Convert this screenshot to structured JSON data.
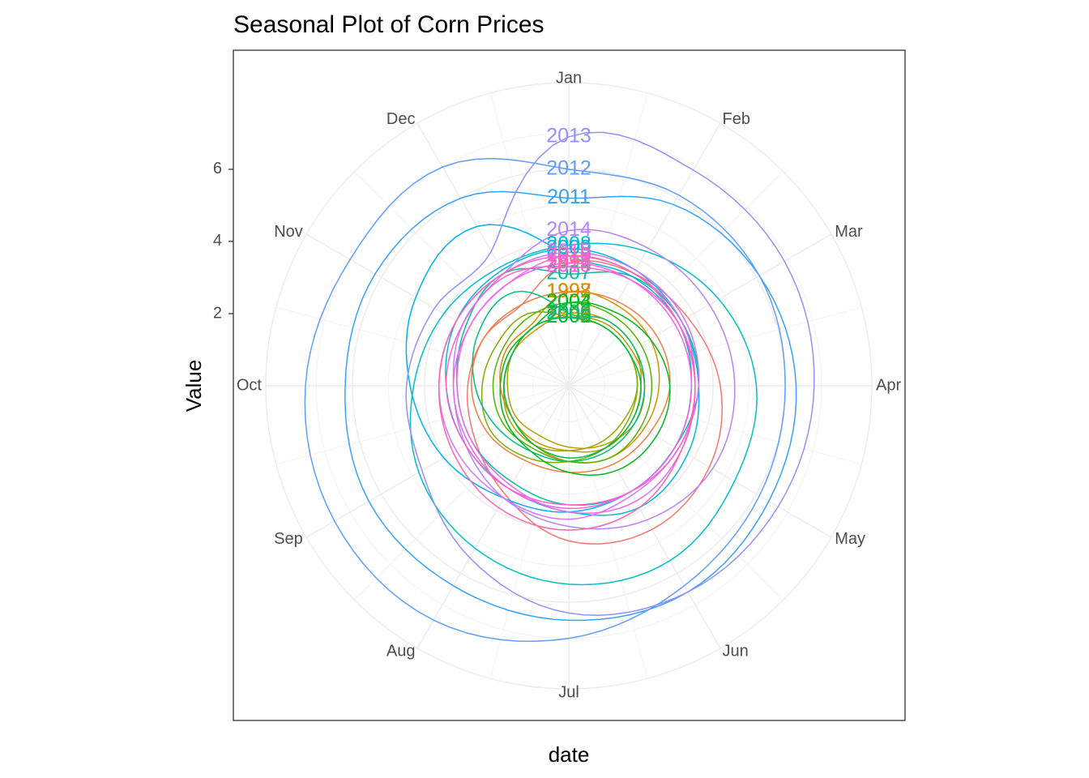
{
  "chart_data": {
    "type": "line",
    "coord": "polar",
    "title": "Seasonal Plot of Corn Prices",
    "xlabel": "date",
    "ylabel": "Value",
    "months": [
      "Jan",
      "Feb",
      "Mar",
      "Apr",
      "May",
      "Jun",
      "Jul",
      "Aug",
      "Sep",
      "Oct",
      "Nov",
      "Dec"
    ],
    "y_ticks": [
      2,
      4,
      6
    ],
    "ylim": [
      0,
      8.4
    ],
    "grid": true,
    "series": [
      {
        "name": "1996",
        "color": "#f8766d",
        "values": [
          3.4,
          3.6,
          3.8,
          4.2,
          4.5,
          4.6,
          4.3,
          3.5,
          3.0,
          2.8,
          2.7,
          2.6
        ]
      },
      {
        "name": "1997",
        "color": "#ed8141",
        "values": [
          2.6,
          2.7,
          2.8,
          2.8,
          2.6,
          2.5,
          2.4,
          2.4,
          2.6,
          2.7,
          2.7,
          2.6
        ]
      },
      {
        "name": "1998",
        "color": "#dc8d00",
        "values": [
          2.6,
          2.6,
          2.6,
          2.5,
          2.4,
          2.3,
          2.1,
          1.9,
          1.8,
          1.9,
          2.0,
          2.0
        ]
      },
      {
        "name": "1999",
        "color": "#c99800",
        "values": [
          2.0,
          2.1,
          2.1,
          2.0,
          2.0,
          2.0,
          1.8,
          1.8,
          1.8,
          1.8,
          1.8,
          1.8
        ]
      },
      {
        "name": "2000",
        "color": "#b3a000",
        "values": [
          1.9,
          2.0,
          2.0,
          2.1,
          2.1,
          1.9,
          1.7,
          1.6,
          1.7,
          1.7,
          1.8,
          1.9
        ]
      },
      {
        "name": "2001",
        "color": "#9aa800",
        "values": [
          1.9,
          1.9,
          1.9,
          1.9,
          1.8,
          1.8,
          1.8,
          1.9,
          1.9,
          1.8,
          1.8,
          1.9
        ]
      },
      {
        "name": "2002",
        "color": "#7cae00",
        "values": [
          1.9,
          1.9,
          1.9,
          1.9,
          1.9,
          2.0,
          2.1,
          2.3,
          2.5,
          2.4,
          2.3,
          2.3
        ]
      },
      {
        "name": "2003",
        "color": "#53b400",
        "values": [
          2.3,
          2.3,
          2.3,
          2.3,
          2.3,
          2.3,
          2.1,
          2.0,
          2.1,
          2.1,
          2.1,
          2.2
        ]
      },
      {
        "name": "2004",
        "color": "#00b81f",
        "values": [
          2.3,
          2.4,
          2.6,
          2.8,
          2.8,
          2.7,
          2.4,
          2.1,
          2.0,
          1.9,
          1.9,
          1.9
        ]
      },
      {
        "name": "2005",
        "color": "#00bb4e",
        "values": [
          1.9,
          1.9,
          1.9,
          2.0,
          2.0,
          2.0,
          2.0,
          1.9,
          1.8,
          1.8,
          1.8,
          1.9
        ]
      },
      {
        "name": "2006",
        "color": "#00bf7d",
        "values": [
          2.0,
          2.1,
          2.1,
          2.1,
          2.1,
          2.1,
          2.1,
          2.1,
          2.3,
          2.6,
          2.9,
          3.0
        ]
      },
      {
        "name": "2007",
        "color": "#00c0a0",
        "values": [
          3.1,
          3.5,
          3.6,
          3.6,
          3.4,
          3.4,
          3.3,
          3.1,
          3.1,
          3.1,
          3.3,
          3.6
        ]
      },
      {
        "name": "2008",
        "color": "#00bfc4",
        "values": [
          3.9,
          4.3,
          4.8,
          5.2,
          5.3,
          5.6,
          5.5,
          5.2,
          4.8,
          4.3,
          4.0,
          3.8
        ]
      },
      {
        "name": "2009",
        "color": "#00b9e3",
        "values": [
          3.8,
          3.7,
          3.6,
          3.6,
          3.8,
          3.9,
          3.5,
          3.3,
          3.3,
          3.4,
          3.6,
          3.7
        ]
      },
      {
        "name": "2010",
        "color": "#00b0f6",
        "values": [
          3.6,
          3.5,
          3.5,
          3.4,
          3.4,
          3.4,
          3.5,
          3.6,
          4.0,
          4.4,
          4.9,
          5.1
        ]
      },
      {
        "name": "2011",
        "color": "#35a2ff",
        "values": [
          5.2,
          5.8,
          6.1,
          6.3,
          6.4,
          6.6,
          6.5,
          6.4,
          6.4,
          6.2,
          6.2,
          6.0
        ]
      },
      {
        "name": "2012",
        "color": "#619cff",
        "values": [
          6.0,
          6.1,
          6.1,
          6.0,
          6.1,
          6.4,
          7.0,
          7.5,
          7.5,
          7.3,
          7.0,
          7.0
        ]
      },
      {
        "name": "2013",
        "color": "#9590ff",
        "values": [
          6.9,
          6.9,
          6.9,
          6.8,
          6.7,
          6.6,
          6.3,
          5.5,
          4.7,
          4.5,
          4.3,
          4.3
        ]
      },
      {
        "name": "2014",
        "color": "#b983ff",
        "values": [
          4.3,
          4.4,
          4.5,
          4.6,
          4.6,
          4.3,
          3.9,
          3.6,
          3.3,
          3.2,
          3.4,
          3.6
        ]
      },
      {
        "name": "2015",
        "color": "#d774fd",
        "values": [
          3.7,
          3.7,
          3.7,
          3.6,
          3.5,
          3.5,
          3.7,
          3.6,
          3.6,
          3.6,
          3.6,
          3.6
        ]
      },
      {
        "name": "2016",
        "color": "#e76bf3",
        "values": [
          3.6,
          3.6,
          3.6,
          3.5,
          3.6,
          3.7,
          3.5,
          3.2,
          3.1,
          3.1,
          3.2,
          3.3
        ]
      },
      {
        "name": "2017",
        "color": "#f564e3",
        "values": [
          3.4,
          3.4,
          3.4,
          3.4,
          3.4,
          3.4,
          3.4,
          3.3,
          3.2,
          3.2,
          3.2,
          3.3
        ]
      },
      {
        "name": "2018",
        "color": "#fe61cf",
        "values": [
          3.3,
          3.4,
          3.5,
          3.5,
          3.5,
          3.4,
          3.3,
          3.3,
          3.3,
          3.4,
          3.4,
          3.5
        ]
      },
      {
        "name": "2019",
        "color": "#ff65ae",
        "values": [
          3.6,
          3.6,
          3.5,
          3.5,
          3.6,
          3.9,
          4.0,
          3.9,
          3.7,
          3.6,
          3.6,
          3.6
        ]
      }
    ]
  }
}
